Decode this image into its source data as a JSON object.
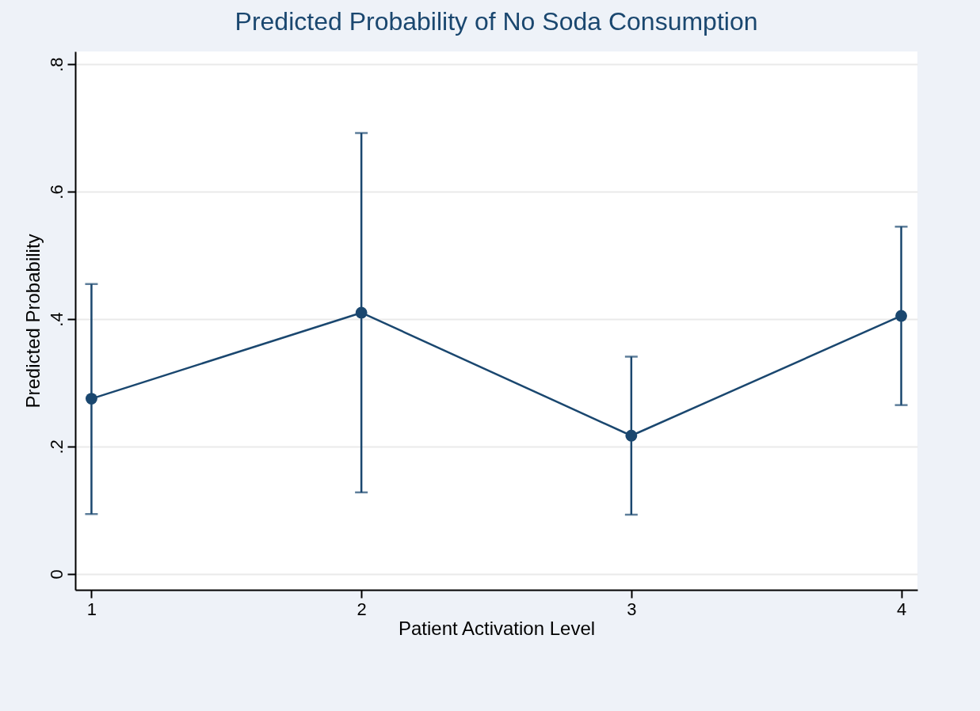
{
  "chart_data": {
    "type": "line",
    "title": "Predicted Probability of No Soda Consumption",
    "xlabel": "Patient Activation Level",
    "ylabel": "Predicted Probability",
    "x": [
      1,
      2,
      3,
      4
    ],
    "series": [
      {
        "color": "#1a476f",
        "values": [
          0.275,
          0.41,
          0.217,
          0.405
        ],
        "errors": [
          [
            0.094,
            0.455
          ],
          [
            0.128,
            0.692
          ],
          [
            0.093,
            0.341
          ],
          [
            0.265,
            0.545
          ]
        ]
      }
    ],
    "xlim": [
      0.94,
      4.06
    ],
    "xticks": [
      1,
      2,
      3,
      4
    ],
    "ylim": [
      -0.025,
      0.82
    ],
    "yticks": [
      0,
      {
        "value": 0.2,
        "label": ".2"
      },
      {
        "value": 0.4,
        "label": ".4"
      },
      {
        "value": 0.6,
        "label": ".6"
      },
      {
        "value": 0.8,
        "label": ".8"
      }
    ],
    "grid": "y",
    "marker": "circle",
    "line_style": "solid"
  }
}
